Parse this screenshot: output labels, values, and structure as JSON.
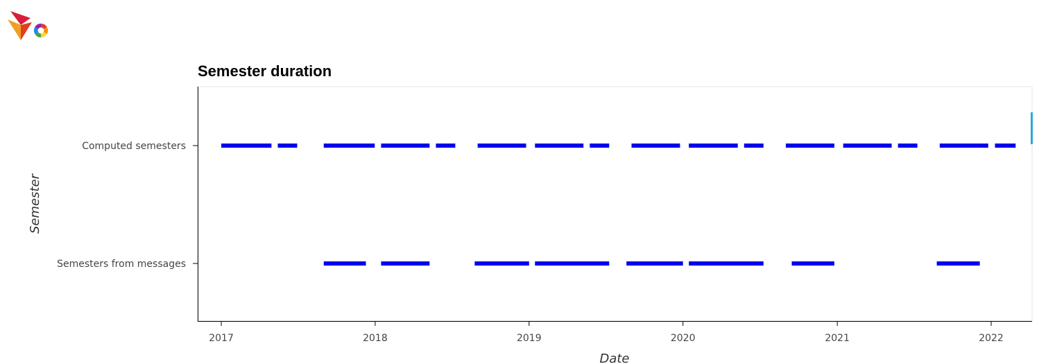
{
  "colors": {
    "segment": "#0000ee",
    "frame": "#e4e4e4",
    "axis": "#000000",
    "toolbar_accent": "#2aa9d8"
  },
  "icons": [
    "bokeh-logo-icon"
  ],
  "chart_data": {
    "type": "segment",
    "title": "Semester duration",
    "xlabel": "Date",
    "ylabel": "Semester",
    "xlim": [
      "2016-11-06",
      "2022-04-08"
    ],
    "x_ticks": [
      "2017-01-01",
      "2018-01-01",
      "2019-01-01",
      "2020-01-01",
      "2021-01-01",
      "2022-01-01"
    ],
    "x_tick_labels": [
      "2017",
      "2018",
      "2019",
      "2020",
      "2021",
      "2022"
    ],
    "categories": [
      "Computed semesters",
      "Semesters from messages"
    ],
    "series": [
      {
        "category": "Computed semesters",
        "segments": [
          [
            "2017-01-01",
            "2017-04-30"
          ],
          [
            "2017-05-15",
            "2017-06-30"
          ],
          [
            "2017-09-01",
            "2017-12-31"
          ],
          [
            "2018-01-15",
            "2018-05-10"
          ],
          [
            "2018-05-25",
            "2018-07-10"
          ],
          [
            "2018-09-01",
            "2018-12-25"
          ],
          [
            "2019-01-15",
            "2019-05-10"
          ],
          [
            "2019-05-25",
            "2019-07-10"
          ],
          [
            "2019-09-01",
            "2019-12-25"
          ],
          [
            "2020-01-15",
            "2020-05-10"
          ],
          [
            "2020-05-25",
            "2020-07-10"
          ],
          [
            "2020-09-01",
            "2020-12-25"
          ],
          [
            "2021-01-15",
            "2021-05-10"
          ],
          [
            "2021-05-25",
            "2021-07-10"
          ],
          [
            "2021-09-01",
            "2021-12-25"
          ],
          [
            "2022-01-10",
            "2022-02-28"
          ]
        ]
      },
      {
        "category": "Semesters from messages",
        "segments": [
          [
            "2017-09-01",
            "2017-12-10"
          ],
          [
            "2018-01-15",
            "2018-05-10"
          ],
          [
            "2018-08-25",
            "2019-01-01"
          ],
          [
            "2019-01-15",
            "2019-07-10"
          ],
          [
            "2019-08-20",
            "2020-01-01"
          ],
          [
            "2020-01-15",
            "2020-07-10"
          ],
          [
            "2020-09-15",
            "2020-12-25"
          ],
          [
            "2021-08-25",
            "2021-12-05"
          ]
        ]
      }
    ]
  }
}
